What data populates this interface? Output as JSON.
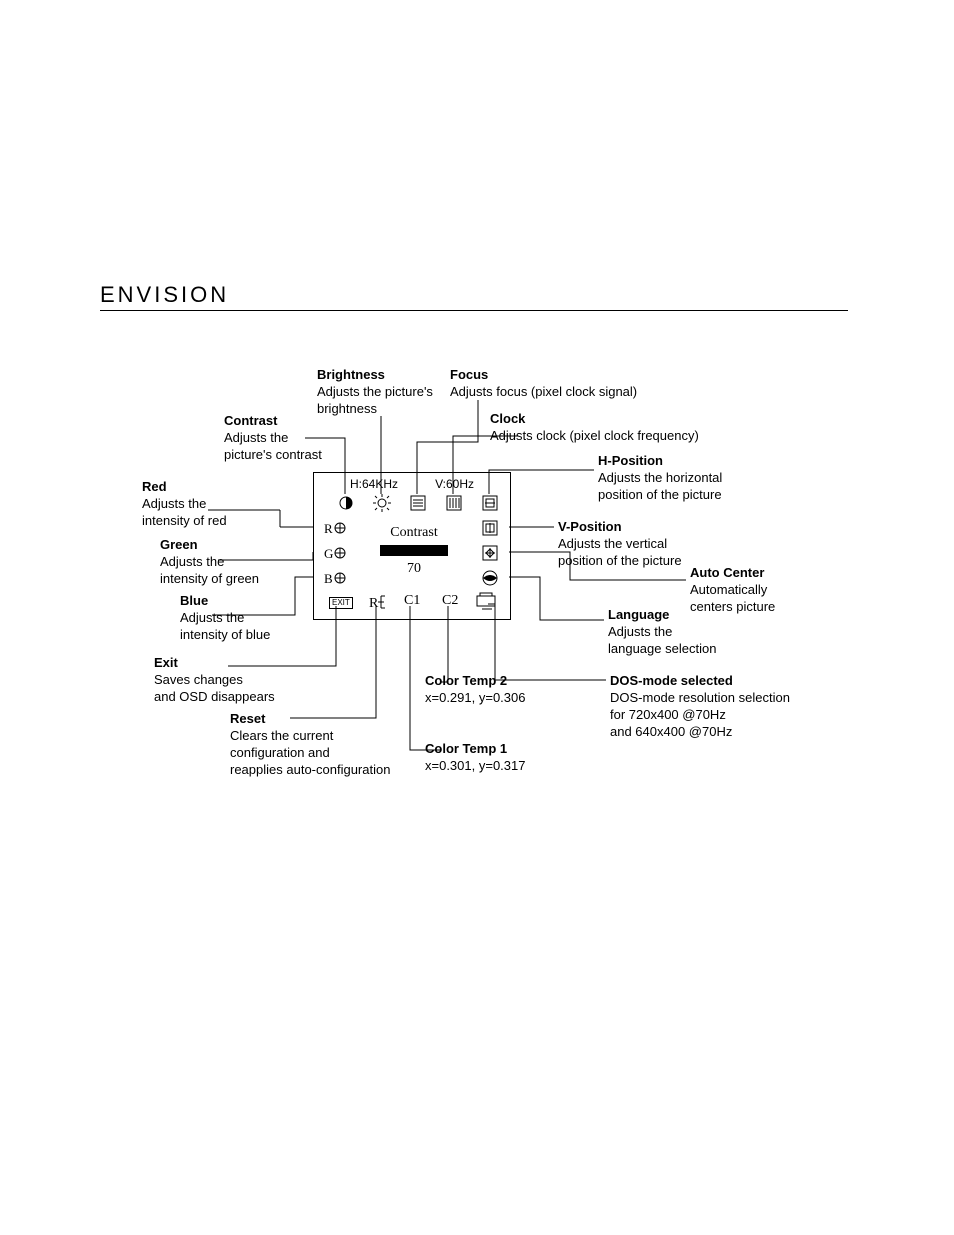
{
  "brand": "ENVISION",
  "osd": {
    "h_freq": "H:64KHz",
    "v_freq": "V:60Hz",
    "selected_label": "Contrast",
    "selected_value": "70",
    "exit_label": "EXIT",
    "reset_glyph": "R",
    "c1": "C1",
    "c2": "C2",
    "r_label": "R",
    "g_label": "G",
    "b_label": "B"
  },
  "callouts": {
    "brightness": {
      "title": "Brightness",
      "desc1": "Adjusts the picture's",
      "desc2": "brightness"
    },
    "focus": {
      "title": "Focus",
      "desc": "Adjusts focus (pixel clock signal)"
    },
    "contrast": {
      "title": "Contrast",
      "desc1": "Adjusts the",
      "desc2": "picture's contrast"
    },
    "clock": {
      "title": "Clock",
      "desc": "Adjusts clock (pixel clock frequency)"
    },
    "hpos": {
      "title": "H-Position",
      "desc1": "Adjusts the horizontal",
      "desc2": "position of the picture"
    },
    "red": {
      "title": "Red",
      "desc1": "Adjusts the",
      "desc2": "intensity of red"
    },
    "green": {
      "title": "Green",
      "desc1": "Adjusts the",
      "desc2": "intensity of green"
    },
    "blue": {
      "title": "Blue",
      "desc1": "Adjusts the",
      "desc2": "intensity of blue"
    },
    "vpos": {
      "title": "V-Position",
      "desc1": "Adjusts the vertical",
      "desc2": "position of the picture"
    },
    "autocenter": {
      "title": "Auto Center",
      "desc1": "Automatically",
      "desc2": "centers picture"
    },
    "language": {
      "title": "Language",
      "desc1": "Adjusts the",
      "desc2": "language selection"
    },
    "dos": {
      "title": "DOS-mode selected",
      "desc1": "DOS-mode resolution selection",
      "desc2": "for 720x400 @70Hz",
      "desc3": "and 640x400 @70Hz"
    },
    "exit": {
      "title": "Exit",
      "desc1": "Saves changes",
      "desc2": "and OSD disappears"
    },
    "reset": {
      "title": "Reset",
      "desc1": "Clears the current",
      "desc2": "configuration and",
      "desc3": "reapplies auto-configuration"
    },
    "ct2": {
      "title": "Color Temp 2",
      "desc": "x=0.291, y=0.306"
    },
    "ct1": {
      "title": "Color Temp 1",
      "desc": "x=0.301, y=0.317"
    }
  }
}
